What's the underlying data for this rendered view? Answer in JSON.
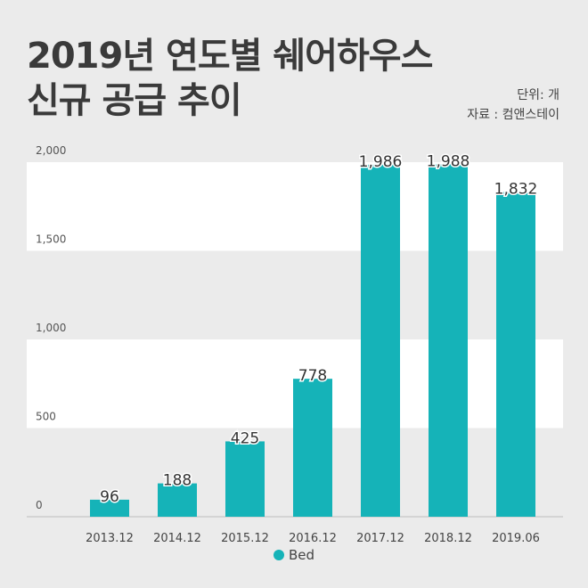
{
  "title_line1": "2019년 연도별 쉐어하우스",
  "title_line2": "신규 공급 추이",
  "unit_text": "단위: 개",
  "source_text": "자료 : 컴앤스테이",
  "colors": {
    "bar": "#15b3b8",
    "band": "#ffffff",
    "background": "#ebebeb"
  },
  "chart_data": {
    "type": "bar",
    "categories": [
      "2013.12",
      "2014.12",
      "2015.12",
      "2016.12",
      "2017.12",
      "2018.12",
      "2019.06"
    ],
    "series": [
      {
        "name": "Bed",
        "values": [
          96,
          188,
          425,
          778,
          1986,
          1988,
          1832
        ]
      }
    ],
    "data_labels": [
      "96",
      "188",
      "425",
      "778",
      "1,986",
      "1,988",
      "1,832"
    ],
    "y_ticks": [
      0,
      500,
      1000,
      1500,
      2000
    ],
    "y_tick_labels": [
      "0",
      "500",
      "1,000",
      "1,500",
      "2,000"
    ],
    "ylim": [
      0,
      2000
    ],
    "xlabel": "",
    "ylabel": "",
    "legend_position": "bottom-center",
    "grid": "alternating bands"
  }
}
